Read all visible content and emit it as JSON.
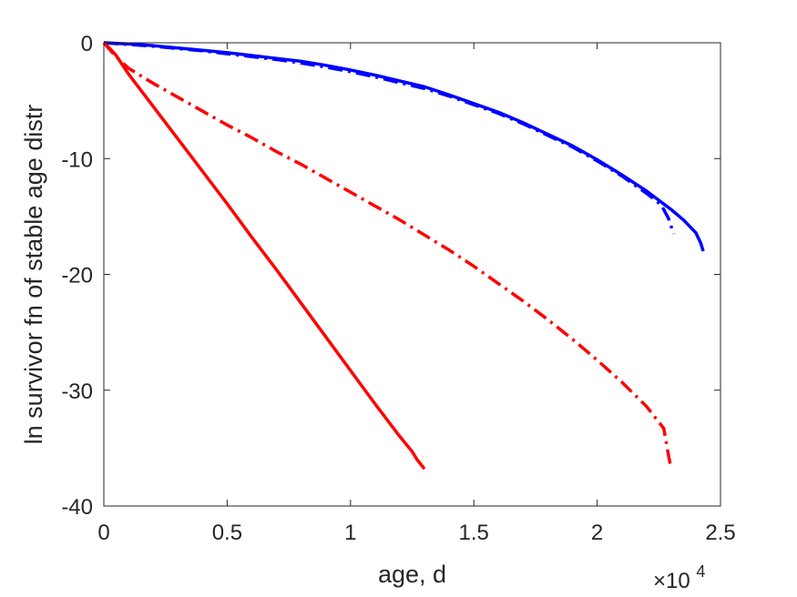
{
  "chart_data": {
    "type": "line",
    "title": "",
    "xlabel": "age, d",
    "ylabel": "ln survivor fn of stable age distr",
    "x_exponent_label": {
      "base": "×10",
      "power": "4"
    },
    "xlim": [
      0,
      25000
    ],
    "ylim": [
      -40,
      0
    ],
    "x_ticks": [
      0,
      5000,
      10000,
      15000,
      20000,
      25000
    ],
    "x_tick_labels": [
      "0",
      "0.5",
      "1",
      "1.5",
      "2",
      "2.5"
    ],
    "y_ticks": [
      0,
      -10,
      -20,
      -30,
      -40
    ],
    "y_tick_labels": [
      "0",
      "-10",
      "-20",
      "-30",
      "-40"
    ],
    "grid": false,
    "legend": "none",
    "series": [
      {
        "color": "#0000ff",
        "style": "solid",
        "x": [
          0,
          1000,
          2000,
          3000,
          4000,
          5000,
          6000,
          7000,
          8000,
          9000,
          10000,
          11000,
          12000,
          13000,
          14000,
          15000,
          16000,
          17000,
          18000,
          19000,
          20000,
          21000,
          22000,
          23000,
          23500,
          24000,
          24200,
          24300
        ],
        "y": [
          0,
          -0.1,
          -0.25,
          -0.45,
          -0.65,
          -0.85,
          -1.1,
          -1.35,
          -1.6,
          -1.95,
          -2.35,
          -2.8,
          -3.3,
          -3.8,
          -4.5,
          -5.25,
          -6.0,
          -6.9,
          -7.9,
          -8.9,
          -10.1,
          -11.4,
          -12.8,
          -14.4,
          -15.3,
          -16.4,
          -17.3,
          -18.0
        ]
      },
      {
        "color": "#0000ff",
        "style": "dashdot",
        "x": [
          0,
          1000,
          2000,
          3000,
          4000,
          5000,
          6000,
          7000,
          8000,
          9000,
          10000,
          11000,
          12000,
          13000,
          14000,
          15000,
          16000,
          17000,
          18000,
          19000,
          20000,
          21000,
          22000,
          22600,
          22900,
          23100
        ],
        "y": [
          0,
          -0.15,
          -0.3,
          -0.5,
          -0.7,
          -0.95,
          -1.2,
          -1.45,
          -1.75,
          -2.1,
          -2.5,
          -2.95,
          -3.45,
          -3.95,
          -4.6,
          -5.35,
          -6.1,
          -7.0,
          -8.0,
          -9.0,
          -10.2,
          -11.5,
          -13.0,
          -14.0,
          -15.2,
          -16.5
        ]
      },
      {
        "color": "#ff0000",
        "style": "solid",
        "x": [
          0,
          200,
          500,
          1000,
          2000,
          3000,
          4000,
          5000,
          6000,
          7000,
          8000,
          9000,
          10000,
          11000,
          12000,
          12500,
          12700,
          13000
        ],
        "y": [
          0,
          -0.4,
          -1.1,
          -2.7,
          -5.5,
          -8.3,
          -11.1,
          -13.9,
          -16.8,
          -19.6,
          -22.5,
          -25.4,
          -28.3,
          -31.2,
          -34.0,
          -35.3,
          -36.0,
          -36.8
        ]
      },
      {
        "color": "#ff0000",
        "style": "dashdot",
        "x": [
          0,
          200,
          500,
          1000,
          2000,
          3000,
          4000,
          5000,
          6000,
          7000,
          8000,
          9000,
          10000,
          11000,
          12000,
          13000,
          14000,
          15000,
          16000,
          17000,
          18000,
          19000,
          20000,
          21000,
          22000,
          22700,
          22900,
          23000
        ],
        "y": [
          0,
          -0.5,
          -1.2,
          -2.2,
          -3.5,
          -4.7,
          -5.9,
          -7.1,
          -8.2,
          -9.4,
          -10.5,
          -11.7,
          -12.9,
          -14.1,
          -15.3,
          -16.6,
          -17.9,
          -19.3,
          -20.8,
          -22.3,
          -23.9,
          -25.6,
          -27.4,
          -29.3,
          -31.4,
          -33.3,
          -35.7,
          -36.8
        ]
      }
    ]
  }
}
